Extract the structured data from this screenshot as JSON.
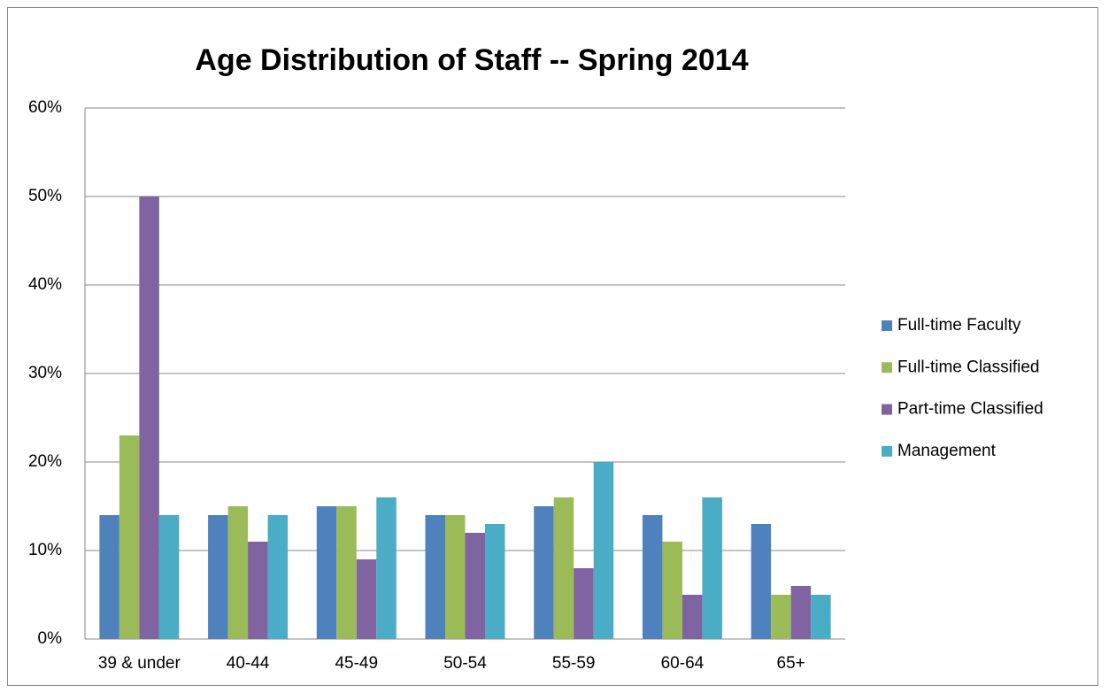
{
  "chart_data": {
    "type": "bar",
    "title": "Age Distribution of Staff -- Spring 2014",
    "categories": [
      "39 & under",
      "40-44",
      "45-49",
      "50-54",
      "55-59",
      "60-64",
      "65+"
    ],
    "series": [
      {
        "name": "Full-time Faculty",
        "color": "#4f81bd",
        "values": [
          14,
          14,
          15,
          14,
          15,
          14,
          13
        ]
      },
      {
        "name": "Full-time Classified",
        "color": "#9bbb59",
        "values": [
          23,
          15,
          15,
          14,
          16,
          11,
          5
        ]
      },
      {
        "name": "Part-time Classified",
        "color": "#8064a2",
        "values": [
          50,
          11,
          9,
          12,
          8,
          5,
          6
        ]
      },
      {
        "name": "Management",
        "color": "#4bacc6",
        "values": [
          14,
          14,
          16,
          13,
          20,
          16,
          5
        ]
      }
    ],
    "ylim": [
      0,
      60
    ],
    "yticks": [
      {
        "value": 0,
        "label": "0%"
      },
      {
        "value": 10,
        "label": "10%"
      },
      {
        "value": 20,
        "label": "20%"
      },
      {
        "value": 30,
        "label": "30%"
      },
      {
        "value": 40,
        "label": "40%"
      },
      {
        "value": 50,
        "label": "50%"
      },
      {
        "value": 60,
        "label": "60%"
      }
    ],
    "grid": true,
    "legend": "right"
  }
}
